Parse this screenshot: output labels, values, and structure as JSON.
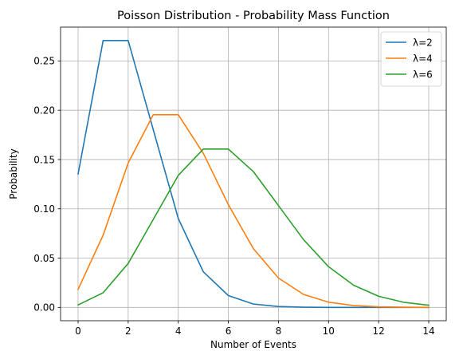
{
  "chart_data": {
    "type": "line",
    "title": "Poisson Distribution - Probability Mass Function",
    "xlabel": "Number of Events",
    "ylabel": "Probability",
    "xlim": [
      -0.7,
      14.7
    ],
    "ylim": [
      -0.0135,
      0.2843
    ],
    "xticks": [
      0,
      2,
      4,
      6,
      8,
      10,
      12,
      14
    ],
    "xtick_labels": [
      "0",
      "2",
      "4",
      "6",
      "8",
      "10",
      "12",
      "14"
    ],
    "yticks": [
      0.0,
      0.05,
      0.1,
      0.15,
      0.2,
      0.25
    ],
    "ytick_labels": [
      "0.00",
      "0.05",
      "0.10",
      "0.15",
      "0.20",
      "0.25"
    ],
    "grid": true,
    "legend_position": "top-right",
    "x": [
      0,
      1,
      2,
      3,
      4,
      5,
      6,
      7,
      8,
      9,
      10,
      11,
      12,
      13,
      14
    ],
    "series": [
      {
        "name": "λ=2",
        "color": "#1f77b4",
        "values": [
          0.1353,
          0.2707,
          0.2707,
          0.1804,
          0.0902,
          0.0361,
          0.012,
          0.0034,
          0.0009,
          0.0002,
          4e-05,
          1e-05,
          0.0,
          0.0,
          0.0
        ]
      },
      {
        "name": "λ=4",
        "color": "#ff7f0e",
        "values": [
          0.0183,
          0.0733,
          0.1465,
          0.1954,
          0.1954,
          0.1563,
          0.1042,
          0.0595,
          0.0298,
          0.0132,
          0.0053,
          0.0019,
          0.0006,
          0.0002,
          5e-05
        ]
      },
      {
        "name": "λ=6",
        "color": "#2ca02c",
        "values": [
          0.0025,
          0.0149,
          0.0446,
          0.0892,
          0.1339,
          0.1606,
          0.1606,
          0.1377,
          0.1033,
          0.0688,
          0.0413,
          0.0225,
          0.0113,
          0.0052,
          0.0022
        ]
      }
    ]
  }
}
